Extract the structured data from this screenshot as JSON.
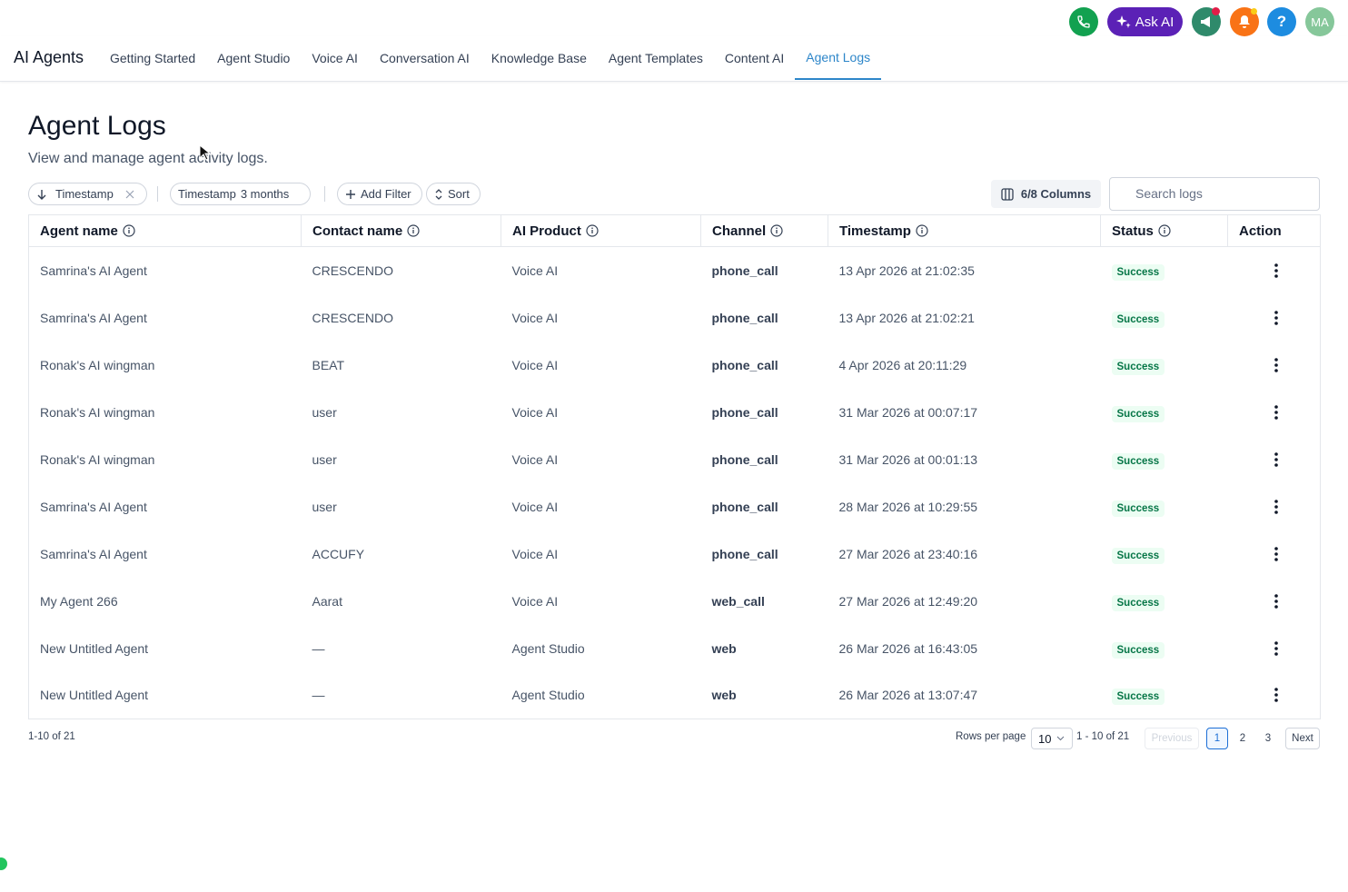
{
  "topbar": {
    "ask_ai": "Ask AI",
    "help": "?",
    "avatar": "MA"
  },
  "nav": {
    "brand": "AI Agents",
    "tabs": [
      "Getting Started",
      "Agent Studio",
      "Voice AI",
      "Conversation AI",
      "Knowledge Base",
      "Agent Templates",
      "Content AI",
      "Agent Logs"
    ],
    "active_tab": 7
  },
  "header": {
    "title": "Agent Logs",
    "subtitle": "View and manage agent activity logs."
  },
  "toolbar": {
    "sort_chip": "Timestamp",
    "filter_chip": {
      "field": "Timestamp",
      "value": "3 months"
    },
    "add_filter": "Add Filter",
    "sort": "Sort",
    "columns": "6/8 Columns",
    "search_placeholder": "Search logs"
  },
  "table": {
    "columns": [
      "Agent name",
      "Contact name",
      "AI Product",
      "Channel",
      "Timestamp",
      "Status",
      "Action"
    ],
    "rows": [
      [
        "Samrina's AI Agent",
        "CRESCENDO",
        "Voice AI",
        "phone_call",
        "13 Apr 2026 at 21:02:35",
        "Success"
      ],
      [
        "Samrina's AI Agent",
        "CRESCENDO",
        "Voice AI",
        "phone_call",
        "13 Apr 2026 at 21:02:21",
        "Success"
      ],
      [
        "Ronak's AI wingman",
        "BEAT",
        "Voice AI",
        "phone_call",
        "4 Apr 2026 at 20:11:29",
        "Success"
      ],
      [
        "Ronak's AI wingman",
        "user",
        "Voice AI",
        "phone_call",
        "31 Mar 2026 at 00:07:17",
        "Success"
      ],
      [
        "Ronak's AI wingman",
        "user",
        "Voice AI",
        "phone_call",
        "31 Mar 2026 at 00:01:13",
        "Success"
      ],
      [
        "Samrina's AI Agent",
        "user",
        "Voice AI",
        "phone_call",
        "28 Mar 2026 at 10:29:55",
        "Success"
      ],
      [
        "Samrina's AI Agent",
        "ACCUFY",
        "Voice AI",
        "phone_call",
        "27 Mar 2026 at 23:40:16",
        "Success"
      ],
      [
        "My Agent 266",
        "Aarat",
        "Voice AI",
        "web_call",
        "27 Mar 2026 at 12:49:20",
        "Success"
      ],
      [
        "New Untitled Agent",
        "—",
        "Agent Studio",
        "web",
        "26 Mar 2026 at 16:43:05",
        "Success"
      ],
      [
        "New Untitled Agent",
        "—",
        "Agent Studio",
        "web",
        "26 Mar 2026 at 13:07:47",
        "Success"
      ]
    ]
  },
  "footer": {
    "range": "1-10 of 21",
    "rows_per_page_label": "Rows per page",
    "rows_per_page": "10",
    "page_range": "1 - 10 of 21",
    "previous": "Previous",
    "pages": [
      "1",
      "2",
      "3"
    ],
    "next": "Next"
  }
}
